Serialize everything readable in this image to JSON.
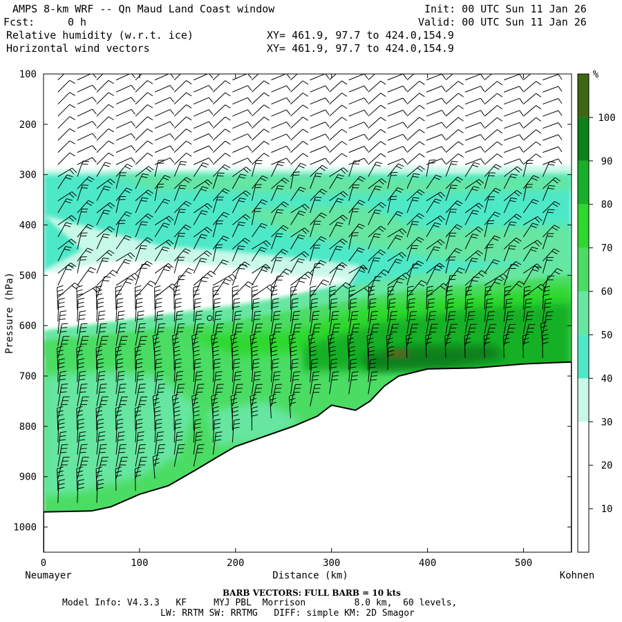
{
  "header": {
    "title": "AMPS 8-km WRF -- Qn Maud Land Coast window",
    "fcst_label": "Fcst:",
    "fcst_value": "0 h",
    "init": "Init: 00 UTC Sun 11 Jan 26",
    "valid": "Valid: 00 UTC Sun 11 Jan 26",
    "field1": "Relative humidity (w.r.t. ice)",
    "field2": "Horizontal wind vectors",
    "xy1": "XY= 461.9, 97.7 to 424.0,154.9",
    "xy2": "XY= 461.9, 97.7 to 424.0,154.9"
  },
  "footer": {
    "barb": "BARB VECTORS:  FULL BARB = 10 kts",
    "model1": "Model Info: V4.3.3   KF     MYJ PBL  Morrison         8.0 km,  60 levels,",
    "model2": "LW: RRTM SW: RRTMG   DIFF: simple KM: 2D Smagor"
  },
  "colors": {
    "c0_10": "#ffffff",
    "c10_20": "#ffffff",
    "c20_30": "#ffffff",
    "c30_40": "#c8f8e8",
    "c40_50": "#4ee8c8",
    "c50_60": "#66e6a0",
    "c60_70": "#4cdc64",
    "c70_80": "#2ed82e",
    "c80_90": "#18b028",
    "c90_100": "#0e801c",
    "c100p": "#3f6614",
    "terrain": "#ffffff",
    "maxspot": "#7a5a20"
  },
  "chart_data": {
    "type": "heatmap",
    "title": "Relative humidity (w.r.t. ice) with horizontal wind barbs, cross-section",
    "xlabel": "Distance (km)",
    "ylabel": "Pressure (hPa)",
    "xlim": [
      0,
      550
    ],
    "ylim": [
      1050,
      100
    ],
    "x_ticks": [
      0,
      100,
      200,
      300,
      400,
      500
    ],
    "y_ticks": [
      100,
      200,
      300,
      400,
      500,
      600,
      700,
      800,
      900,
      1000
    ],
    "x_end_labels": {
      "left": "Neumayer",
      "right": "Kohnen"
    },
    "colorbar": {
      "unit": "%",
      "levels": [
        10,
        20,
        30,
        40,
        50,
        60,
        70,
        80,
        90,
        100
      ]
    },
    "terrain_surface_hPa": [
      {
        "x": 0,
        "p": 970
      },
      {
        "x": 50,
        "p": 968
      },
      {
        "x": 70,
        "p": 960
      },
      {
        "x": 100,
        "p": 935
      },
      {
        "x": 130,
        "p": 918
      },
      {
        "x": 160,
        "p": 885
      },
      {
        "x": 180,
        "p": 862
      },
      {
        "x": 200,
        "p": 840
      },
      {
        "x": 230,
        "p": 820
      },
      {
        "x": 260,
        "p": 800
      },
      {
        "x": 285,
        "p": 780
      },
      {
        "x": 300,
        "p": 758
      },
      {
        "x": 310,
        "p": 762
      },
      {
        "x": 325,
        "p": 768
      },
      {
        "x": 340,
        "p": 750
      },
      {
        "x": 355,
        "p": 720
      },
      {
        "x": 370,
        "p": 700
      },
      {
        "x": 400,
        "p": 686
      },
      {
        "x": 450,
        "p": 684
      },
      {
        "x": 500,
        "p": 676
      },
      {
        "x": 550,
        "p": 672
      }
    ],
    "rh_regions": [
      {
        "level": "30-40",
        "band_hPa": [
          285,
          300
        ],
        "x_range": [
          0,
          550
        ]
      },
      {
        "level": "40-50",
        "band_hPa": [
          300,
          420
        ],
        "x_range": [
          0,
          550
        ]
      },
      {
        "level": "50-60",
        "band_hPa": [
          420,
          560
        ],
        "x_range": [
          380,
          550
        ]
      },
      {
        "level": "0-30",
        "band_hPa": [
          450,
          620
        ],
        "x_range": [
          0,
          320
        ]
      },
      {
        "level": "60-80",
        "band_hPa": [
          560,
          700
        ],
        "x_range": [
          0,
          550
        ]
      },
      {
        "level": "80-90",
        "band_hPa": [
          600,
          690
        ],
        "x_range": [
          270,
          550
        ]
      },
      {
        "level": "90-100",
        "band_hPa": [
          640,
          680
        ],
        "x_range": [
          340,
          480
        ]
      },
      {
        "level": ">100",
        "band_hPa": [
          650,
          670
        ],
        "x_range": [
          355,
          380
        ]
      }
    ],
    "wind_barbs": "columns every ~20 km from 15 to 540 km, levels every ~25 hPa, 10-40 kt; westerly aloft, easterly/southerly near surface"
  }
}
